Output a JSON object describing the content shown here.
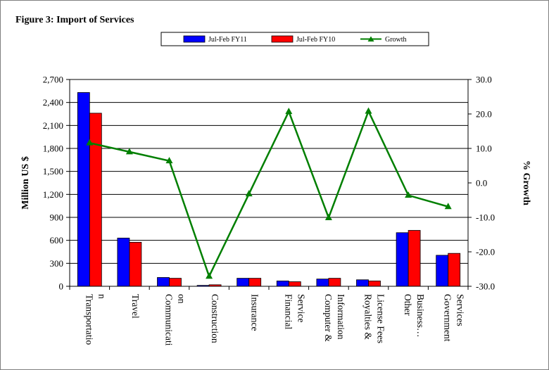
{
  "chart_data": {
    "type": "bar",
    "title": "Figure 3: Import of Services",
    "ylabel": "Million US $",
    "y2label": "% Growth",
    "ylim": [
      0,
      2700
    ],
    "y2lim": [
      -30,
      30
    ],
    "yticks": [
      "0",
      "300",
      "600",
      "900",
      "1,200",
      "1,500",
      "1,800",
      "2,100",
      "2,400",
      "2,700"
    ],
    "y2ticks": [
      "-30.0",
      "-20.0",
      "-10.0",
      "0.0",
      "10.0",
      "20.0",
      "30.0"
    ],
    "grid": true,
    "legend_position": "top",
    "categories": [
      [
        "Transportatio",
        "n"
      ],
      [
        "Travel"
      ],
      [
        "Communicati",
        "on"
      ],
      [
        "Construction"
      ],
      [
        "Insurance"
      ],
      [
        "Financial",
        "Service"
      ],
      [
        "Computer &",
        "Information"
      ],
      [
        "Royalties &",
        "License Fees"
      ],
      [
        "Other",
        "Business…"
      ],
      [
        "Government",
        "Services"
      ]
    ],
    "series": [
      {
        "name": "Jul-Feb FY11",
        "type": "bar",
        "color": "#0000ff",
        "values": [
          2530,
          630,
          115,
          12,
          105,
          70,
          95,
          85,
          700,
          405
        ]
      },
      {
        "name": "Jul-Feb FY10",
        "type": "bar",
        "color": "#ff0000",
        "values": [
          2260,
          575,
          105,
          20,
          105,
          60,
          105,
          70,
          730,
          430
        ]
      },
      {
        "name": "Growth",
        "type": "line",
        "axis": "right",
        "color": "#007f00",
        "values": [
          11.6,
          9.0,
          6.4,
          -27.1,
          -3.2,
          20.7,
          -10.1,
          20.8,
          -3.6,
          -6.9
        ]
      }
    ]
  }
}
